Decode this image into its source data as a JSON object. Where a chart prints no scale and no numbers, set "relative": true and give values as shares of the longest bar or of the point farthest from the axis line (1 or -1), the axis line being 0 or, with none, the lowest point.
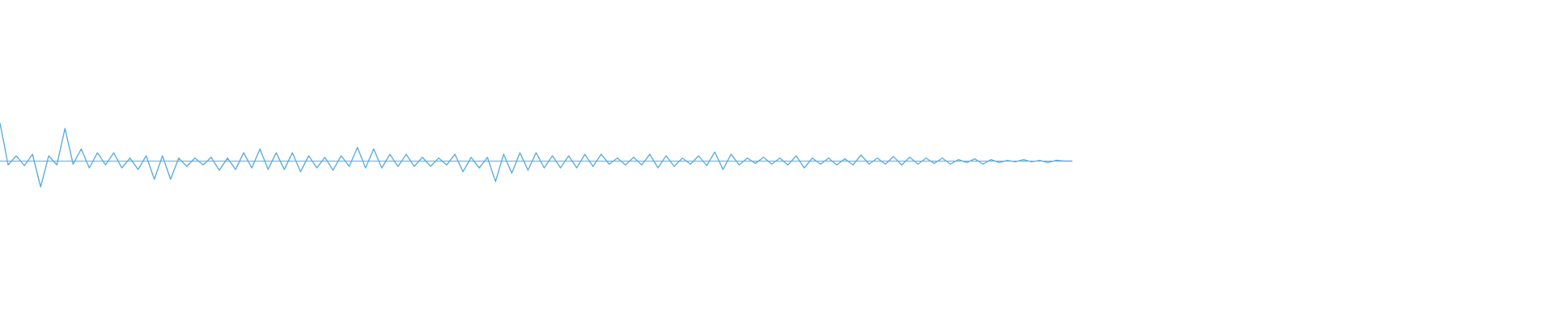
{
  "chart_data": {
    "type": "line",
    "relative": true,
    "ref_lines": [
      {
        "axis": "y",
        "value": 0,
        "color": "#5dade2"
      }
    ],
    "categories": [
      null,
      null,
      null,
      null,
      null,
      null,
      null,
      null,
      null,
      null,
      null,
      null,
      null,
      null,
      null,
      null,
      null,
      null,
      null,
      null,
      null,
      null,
      null,
      null,
      null,
      null,
      null,
      null,
      null,
      null,
      null,
      null,
      null,
      null,
      null,
      null,
      null,
      null,
      null,
      null,
      null,
      null,
      null,
      null,
      null,
      null,
      null,
      null,
      null,
      null,
      null,
      null,
      null,
      null,
      null,
      null,
      null,
      null,
      null,
      null,
      null,
      null,
      null,
      null,
      null,
      null,
      null,
      null,
      null,
      null,
      null,
      null,
      null,
      null,
      null,
      null,
      null,
      null,
      null,
      null,
      null,
      null,
      null,
      null,
      null,
      null,
      null,
      null,
      null,
      null,
      null,
      null,
      null,
      null,
      null,
      null,
      null,
      null,
      null,
      null,
      null,
      null,
      null,
      null,
      null,
      null,
      null,
      null,
      null,
      null,
      null,
      null,
      null,
      null,
      null,
      null,
      null,
      null,
      null,
      null,
      null,
      null,
      null,
      null,
      null,
      null,
      null,
      null,
      null,
      null,
      null,
      null,
      null
    ],
    "series": [
      {
        "color": "#5dade2",
        "values": [
          1.0,
          -0.1,
          0.14,
          -0.12,
          0.18,
          -0.68,
          0.14,
          -0.1,
          0.86,
          -0.08,
          0.32,
          -0.18,
          0.22,
          -0.1,
          0.22,
          -0.18,
          0.08,
          -0.22,
          0.14,
          -0.48,
          0.14,
          -0.48,
          0.08,
          -0.14,
          0.08,
          -0.1,
          0.1,
          -0.24,
          0.08,
          -0.22,
          0.22,
          -0.18,
          0.32,
          -0.22,
          0.22,
          -0.22,
          0.22,
          -0.28,
          0.14,
          -0.18,
          0.1,
          -0.24,
          0.14,
          -0.14,
          0.36,
          -0.18,
          0.32,
          -0.18,
          0.18,
          -0.14,
          0.18,
          -0.14,
          0.1,
          -0.14,
          0.08,
          -0.1,
          0.18,
          -0.28,
          0.1,
          -0.18,
          0.1,
          -0.54,
          0.18,
          -0.32,
          0.22,
          -0.24,
          0.22,
          -0.18,
          0.14,
          -0.18,
          0.14,
          -0.18,
          0.18,
          -0.14,
          0.18,
          -0.08,
          0.08,
          -0.1,
          0.1,
          -0.1,
          0.18,
          -0.18,
          0.14,
          -0.14,
          0.08,
          -0.08,
          0.14,
          -0.12,
          0.24,
          -0.22,
          0.18,
          -0.1,
          0.08,
          -0.06,
          0.1,
          -0.08,
          0.08,
          -0.1,
          0.14,
          -0.18,
          0.08,
          -0.08,
          0.08,
          -0.1,
          0.06,
          -0.1,
          0.16,
          -0.08,
          0.08,
          -0.08,
          0.12,
          -0.1,
          0.1,
          -0.08,
          0.08,
          -0.06,
          0.08,
          -0.08,
          0.04,
          -0.04,
          0.06,
          -0.08,
          0.04,
          -0.04,
          0.02,
          -0.02,
          0.04,
          -0.02,
          0.02,
          -0.04,
          0.02,
          0,
          0
        ]
      }
    ]
  }
}
